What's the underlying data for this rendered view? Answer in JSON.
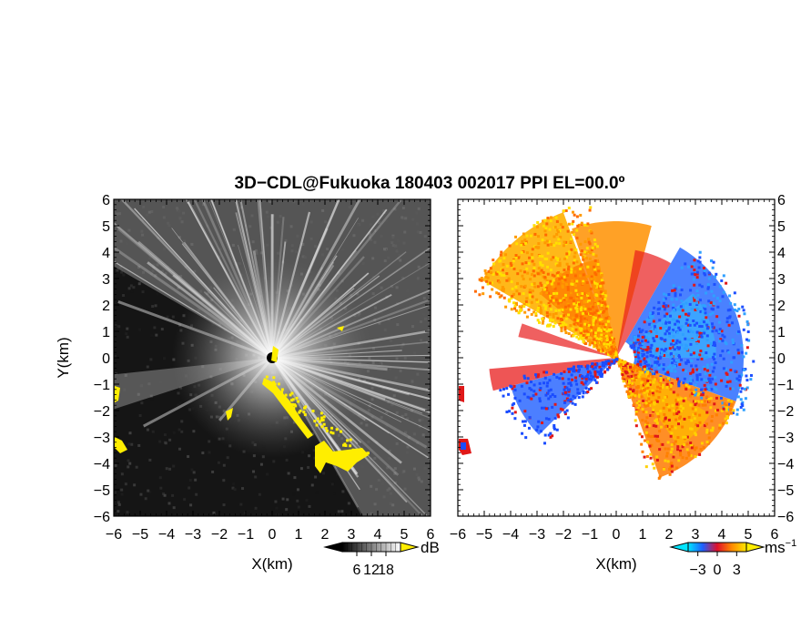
{
  "title": "3D−CDL@Fukuoka 180403 002017 PPI EL=00.0º",
  "chart_data": [
    {
      "type": "heatmap",
      "panel": "left",
      "xlabel": "X(km)",
      "ylabel": "Y(km)",
      "xlim": [
        -6,
        6
      ],
      "ylim": [
        -6,
        6
      ],
      "xticks": [
        "−6",
        "−5",
        "−4",
        "−3",
        "−2",
        "−1",
        "0",
        "1",
        "2",
        "3",
        "4",
        "5",
        "6"
      ],
      "yticks": [
        "6",
        "5",
        "4",
        "3",
        "2",
        "1",
        "0",
        "−1",
        "−2",
        "−3",
        "−4",
        "−5",
        "−6"
      ],
      "colorbar": {
        "unit": "dB",
        "ticks": [
          "6",
          "12",
          "18"
        ],
        "range": [
          0,
          24
        ],
        "colormap": "grayscale"
      },
      "highlight_color": "#ffee00",
      "background_color": "#151515"
    },
    {
      "type": "heatmap",
      "panel": "right",
      "xlabel": "X(km)",
      "xlim": [
        -6,
        6
      ],
      "ylim": [
        -6,
        6
      ],
      "xticks": [
        "−6",
        "−5",
        "−4",
        "−3",
        "−2",
        "−1",
        "0",
        "1",
        "2",
        "3",
        "4",
        "5",
        "6"
      ],
      "yticks": [
        "6",
        "5",
        "4",
        "3",
        "2",
        "1",
        "0",
        "−1",
        "−2",
        "−3",
        "−4",
        "−5",
        "−6"
      ],
      "colorbar": {
        "unit": "ms",
        "unit_sup": "−1",
        "ticks": [
          "−3",
          "0",
          "3"
        ],
        "range": [
          -4.5,
          4.5
        ],
        "colormap": "cyan-blue-red-orange-yellow"
      },
      "background_color": "#ffffff"
    }
  ]
}
